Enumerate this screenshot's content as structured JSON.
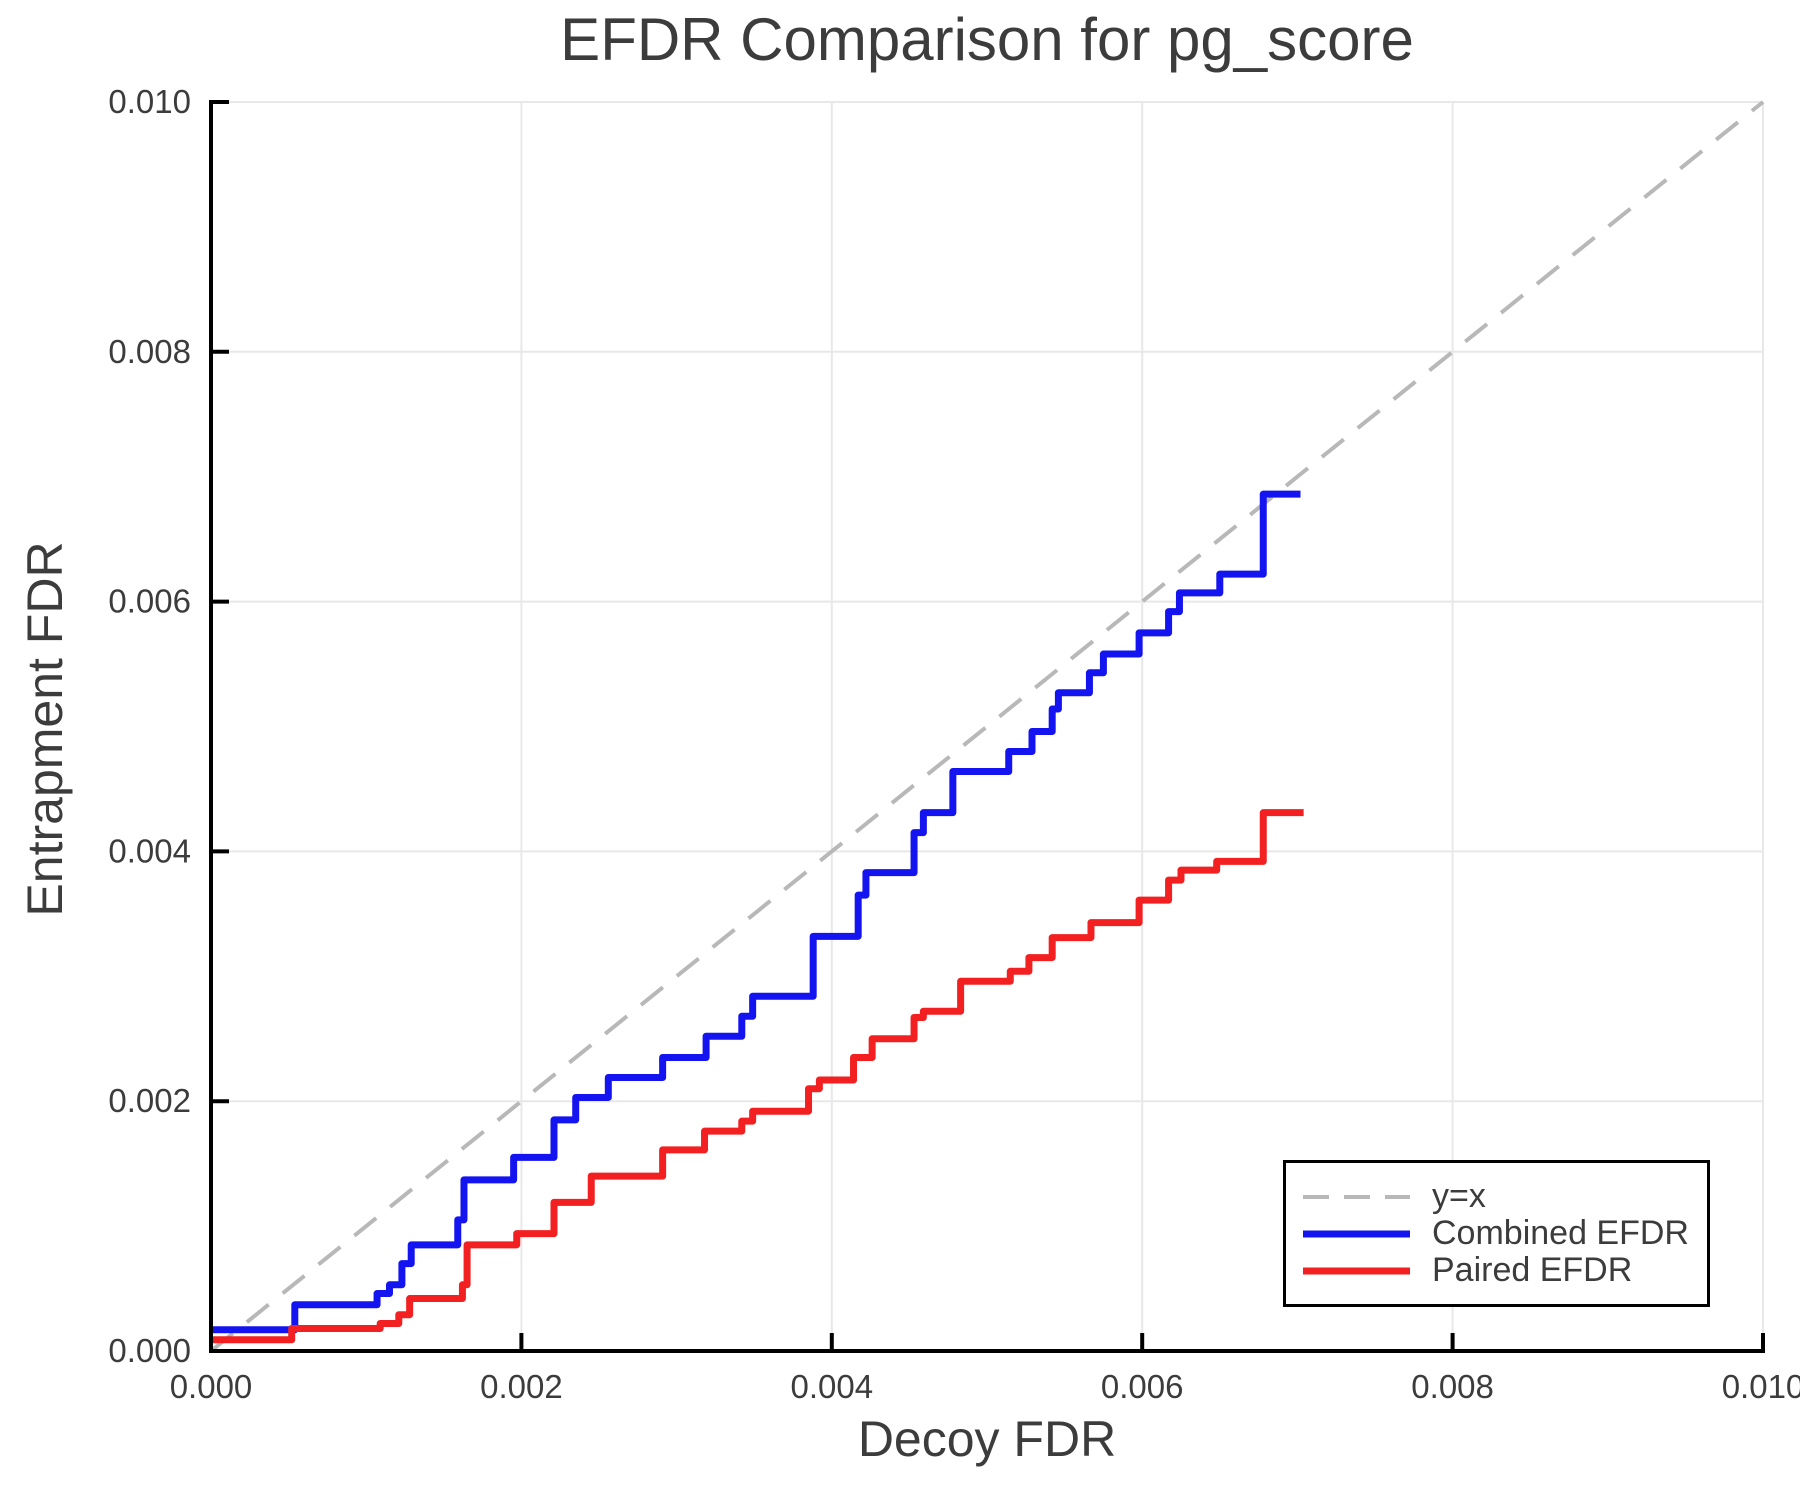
{
  "title": "EFDR Comparison for pg_score",
  "x_axis": {
    "label": "Decoy FDR",
    "tick_labels": [
      "0.000",
      "0.002",
      "0.004",
      "0.006",
      "0.008",
      "0.010"
    ]
  },
  "y_axis": {
    "label": "Entrapment FDR",
    "tick_labels": [
      "0.000",
      "0.002",
      "0.004",
      "0.006",
      "0.008",
      "0.010"
    ]
  },
  "legend": {
    "position": "lower right"
  },
  "colors": {
    "combined": "#1414f0",
    "paired": "#f22020",
    "identity": "#b8b8b8",
    "text": "#3c3c3c",
    "grid": "#e8e8e8",
    "spine": "#000000",
    "background": "#ffffff"
  },
  "chart_data": {
    "type": "line",
    "title": "EFDR Comparison for pg_score",
    "xlabel": "Decoy FDR",
    "ylabel": "Entrapment FDR",
    "xlim": [
      0.0,
      0.01
    ],
    "ylim": [
      0.0,
      0.01
    ],
    "x_ticks": [
      0.0,
      0.002,
      0.004,
      0.006,
      0.008,
      0.01
    ],
    "y_ticks": [
      0.0,
      0.002,
      0.004,
      0.006,
      0.008,
      0.01
    ],
    "grid": true,
    "legend_position": "lower right",
    "series": [
      {
        "name": "y=x",
        "color": "#b8b8b8",
        "dashed": true,
        "step": false,
        "points": [
          [
            0.0,
            0.0
          ],
          [
            0.01,
            0.01
          ]
        ]
      },
      {
        "name": "Combined EFDR",
        "color": "#1414f0",
        "dashed": false,
        "step": true,
        "points": [
          [
            0.0,
            0.00017
          ],
          [
            0.00054,
            0.00037
          ],
          [
            0.00107,
            0.00046
          ],
          [
            0.00115,
            0.00053
          ],
          [
            0.00123,
            0.0007
          ],
          [
            0.00129,
            0.00085
          ],
          [
            0.00159,
            0.00105
          ],
          [
            0.00163,
            0.00137
          ],
          [
            0.00195,
            0.00155
          ],
          [
            0.00221,
            0.00185
          ],
          [
            0.00235,
            0.00203
          ],
          [
            0.00256,
            0.00219
          ],
          [
            0.00291,
            0.00235
          ],
          [
            0.00319,
            0.00252
          ],
          [
            0.00342,
            0.00268
          ],
          [
            0.00349,
            0.00284
          ],
          [
            0.00388,
            0.00332
          ],
          [
            0.00417,
            0.00365
          ],
          [
            0.00422,
            0.00383
          ],
          [
            0.00453,
            0.00415
          ],
          [
            0.00459,
            0.00431
          ],
          [
            0.00478,
            0.00464
          ],
          [
            0.00514,
            0.0048
          ],
          [
            0.00529,
            0.00496
          ],
          [
            0.00542,
            0.00514
          ],
          [
            0.00546,
            0.00527
          ],
          [
            0.00566,
            0.00543
          ],
          [
            0.00575,
            0.00558
          ],
          [
            0.00598,
            0.00575
          ],
          [
            0.00617,
            0.00592
          ],
          [
            0.00624,
            0.00607
          ],
          [
            0.0065,
            0.00622
          ],
          [
            0.00678,
            0.00686
          ],
          [
            0.00702,
            0.00686
          ]
        ]
      },
      {
        "name": "Paired EFDR",
        "color": "#f22020",
        "dashed": false,
        "step": true,
        "points": [
          [
            0.0,
            9e-05
          ],
          [
            0.00052,
            0.00018
          ],
          [
            0.00109,
            0.00022
          ],
          [
            0.00121,
            0.00029
          ],
          [
            0.00128,
            0.00042
          ],
          [
            0.00162,
            0.00053
          ],
          [
            0.00165,
            0.00085
          ],
          [
            0.00197,
            0.00094
          ],
          [
            0.00221,
            0.00119
          ],
          [
            0.00245,
            0.0014
          ],
          [
            0.00291,
            0.00161
          ],
          [
            0.00318,
            0.00176
          ],
          [
            0.00342,
            0.00184
          ],
          [
            0.00349,
            0.00192
          ],
          [
            0.00385,
            0.0021
          ],
          [
            0.00392,
            0.00217
          ],
          [
            0.00414,
            0.00235
          ],
          [
            0.00426,
            0.0025
          ],
          [
            0.00453,
            0.00267
          ],
          [
            0.00459,
            0.00272
          ],
          [
            0.00483,
            0.00296
          ],
          [
            0.00515,
            0.00304
          ],
          [
            0.00527,
            0.00315
          ],
          [
            0.00542,
            0.00331
          ],
          [
            0.00567,
            0.00343
          ],
          [
            0.00598,
            0.00361
          ],
          [
            0.00617,
            0.00377
          ],
          [
            0.00625,
            0.00385
          ],
          [
            0.00648,
            0.00392
          ],
          [
            0.00678,
            0.00431
          ],
          [
            0.00704,
            0.00431
          ]
        ]
      }
    ]
  }
}
